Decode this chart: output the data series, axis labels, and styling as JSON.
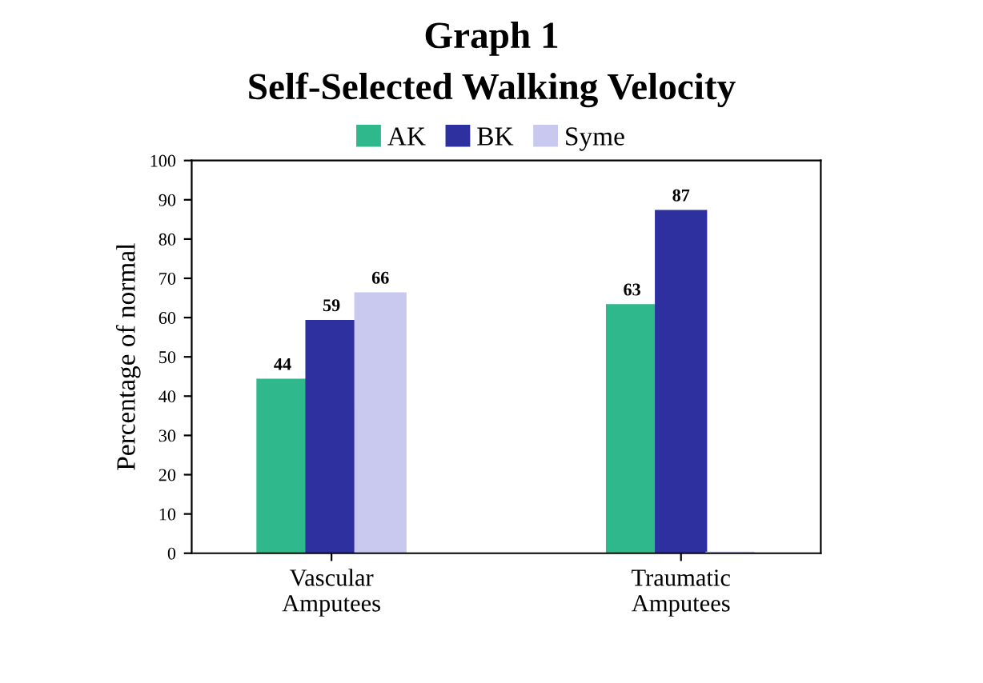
{
  "chart_data": {
    "type": "bar",
    "title": "Graph 1",
    "subtitle": "Self-Selected Walking Velocity",
    "ylabel": "Percentage of normal",
    "categories": [
      "Vascular\nAmputees",
      "Traumatic\nAmputees"
    ],
    "series": [
      {
        "name": "AK",
        "color": "#2fb88c",
        "values": [
          44,
          63
        ],
        "value_labels": [
          "44",
          "63"
        ]
      },
      {
        "name": "BK",
        "color": "#2e30a0",
        "values": [
          59,
          87
        ],
        "value_labels": [
          "59",
          "87"
        ]
      },
      {
        "name": "Syme",
        "color": "#c9c9ef",
        "values": [
          66,
          0
        ],
        "value_labels": [
          "66",
          null
        ]
      }
    ],
    "ylim": [
      0,
      100
    ],
    "yticks": [
      0,
      10,
      20,
      30,
      40,
      50,
      60,
      70,
      80,
      90,
      100
    ],
    "grid": false,
    "legend": "top"
  }
}
